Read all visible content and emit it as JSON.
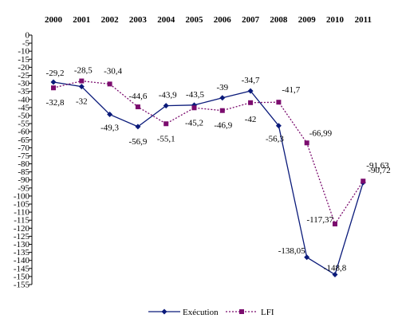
{
  "chart_data": {
    "type": "line",
    "categories": [
      "2000",
      "2001",
      "2002",
      "2003",
      "2004",
      "2005",
      "2006",
      "2007",
      "2008",
      "2009",
      "2010",
      "2011"
    ],
    "ylim": [
      -155,
      0
    ],
    "ytick_step": 5,
    "grid": false,
    "legend_position": "bottom",
    "series": [
      {
        "name": "Exécution",
        "color": "#0a1a7a",
        "marker": "diamond",
        "line_style": "solid",
        "values": [
          -29.2,
          -32,
          -49.3,
          -56.9,
          -43.9,
          -43.5,
          -39,
          -34.7,
          -56.3,
          -138.05,
          -148.8,
          -91.63
        ],
        "labels": [
          "-29,2",
          "-32",
          "-49,3",
          "-56,9",
          "-43,9",
          "-43,5",
          "-39",
          "-34,7",
          "-56,3",
          "-138,05",
          "-148,8",
          "-91,63"
        ]
      },
      {
        "name": "LFI",
        "color": "#7b0c6e",
        "marker": "square",
        "line_style": "dotted",
        "values": [
          -32.8,
          -28.5,
          -30.4,
          -44.6,
          -55.1,
          -45.2,
          -46.9,
          -42,
          -41.7,
          -66.99,
          -117.37,
          -90.72
        ],
        "labels": [
          "-32,8",
          "-28,5",
          "-30,4",
          "-44,6",
          "-55,1",
          "-45,2",
          "-46,9",
          "-42",
          "-41,7",
          "-66,99",
          "-117,37",
          "-90,72"
        ]
      }
    ]
  }
}
